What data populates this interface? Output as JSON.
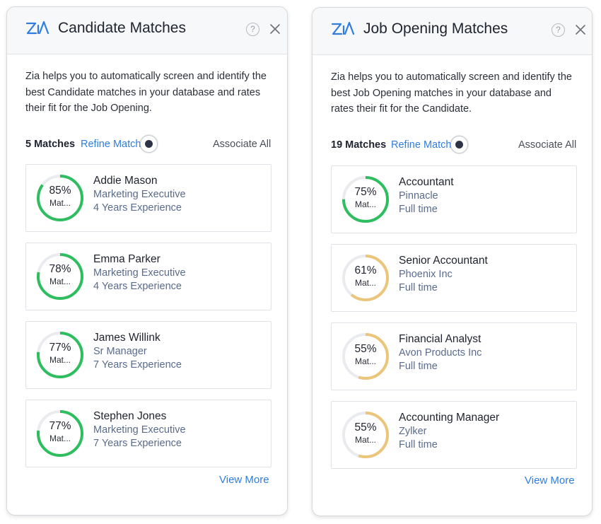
{
  "colors": {
    "good": "#2ebd5f",
    "medium": "#ebc57a",
    "track": "#e9ebee",
    "link": "#2f7de1"
  },
  "left": {
    "title": "Candidate Matches",
    "help": "?",
    "logo": "zia-logo",
    "description": "Zia helps you to automatically screen and identify the best Candidate matches in your database and rates their fit for the Job Opening.",
    "count": "5 Matches",
    "refine": "Refine Match",
    "associate_all": "Associate All",
    "view_more": "View More",
    "items": [
      {
        "percent": 85,
        "pct_label": "85%",
        "sub": "Mat...",
        "name": "Addie Mason",
        "line2": "Marketing Executive",
        "line3": "4 Years Experience",
        "level": "good"
      },
      {
        "percent": 78,
        "pct_label": "78%",
        "sub": "Mat...",
        "name": "Emma Parker",
        "line2": "Marketing Executive",
        "line3": "4 Years Experience",
        "level": "good"
      },
      {
        "percent": 77,
        "pct_label": "77%",
        "sub": "Mat...",
        "name": "James Willink",
        "line2": "Sr Manager",
        "line3": "7 Years Experience",
        "level": "good"
      },
      {
        "percent": 77,
        "pct_label": "77%",
        "sub": "Mat...",
        "name": "Stephen Jones",
        "line2": "Marketing Executive",
        "line3": "7 Years Experience",
        "level": "good"
      }
    ]
  },
  "right": {
    "title": "Job Opening Matches",
    "help": "?",
    "logo": "zia-logo",
    "description": "Zia helps you to automatically screen and identify the best Job Opening matches in your database and rates their fit for the Candidate.",
    "count": "19 Matches",
    "refine": "Refine Match",
    "associate_all": "Associate All",
    "view_more": "View More",
    "items": [
      {
        "percent": 75,
        "pct_label": "75%",
        "sub": "Mat...",
        "name": "Accountant",
        "line2": "Pinnacle",
        "line3": "Full time",
        "level": "good"
      },
      {
        "percent": 61,
        "pct_label": "61%",
        "sub": "Mat...",
        "name": "Senior Accountant",
        "line2": "Phoenix Inc",
        "line3": "Full time",
        "level": "medium"
      },
      {
        "percent": 55,
        "pct_label": "55%",
        "sub": "Mat...",
        "name": "Financial Analyst",
        "line2": "Avon Products Inc",
        "line3": "Full time",
        "level": "medium"
      },
      {
        "percent": 55,
        "pct_label": "55%",
        "sub": "Mat...",
        "name": "Accounting Manager",
        "line2": "Zylker",
        "line3": "Full time",
        "level": "medium"
      }
    ]
  }
}
